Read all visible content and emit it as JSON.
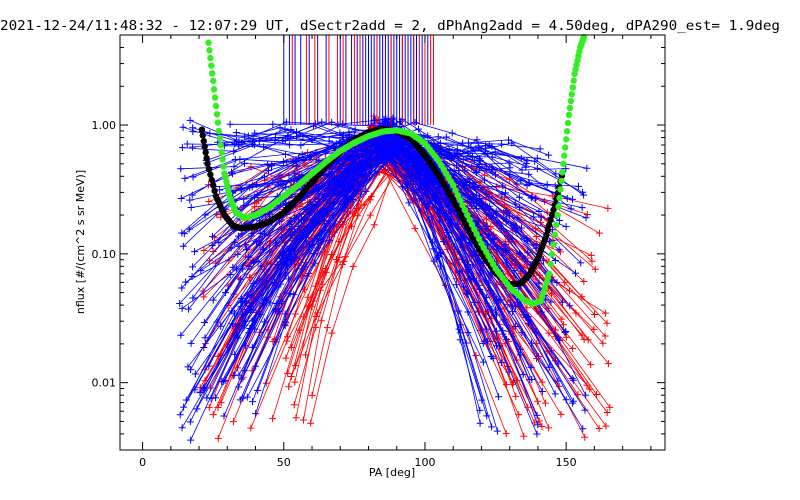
{
  "chart_data": {
    "type": "line",
    "title": "2021-12-24/11:48:32 - 12:07:29 UT, dSectr2add = 2, dPhAng2add = 4.50deg, dPA290_est=   1.9deg",
    "xlabel": "PA [deg]",
    "ylabel": "nflux [#/(cm^2 s sr MeV)]",
    "xlim": [
      -8,
      185
    ],
    "ylim": [
      0.003,
      5.0
    ],
    "yscale": "log",
    "x_ticks": [
      0,
      50,
      100,
      150
    ],
    "x_tick_labels": [
      "0",
      "50",
      "100",
      "150"
    ],
    "y_ticks": [
      0.01,
      0.1,
      1.0
    ],
    "y_tick_labels": [
      "0.01",
      "0.10",
      "1.00"
    ],
    "grid": false,
    "colors": {
      "series_red": "#ff0000",
      "series_blue": "#0000ff",
      "fit_black": "#000000",
      "fit_green": "#33ee22"
    },
    "series": [
      {
        "color": "red",
        "style": "lines+plus-markers",
        "shape": {
          "peak_pa": 85,
          "peak_min": 0.45,
          "peak_max": 1.0,
          "left_start_range": [
            20,
            64
          ],
          "right_end_range": [
            128,
            166
          ],
          "edge_min": 0.004,
          "edge_max": 0.4
        }
      },
      {
        "color": "blue",
        "style": "lines+plus-markers",
        "shape": {
          "peak_pa": 87,
          "peak_min": 0.6,
          "peak_max": 1.0,
          "left_start_range": [
            13,
            42
          ],
          "right_end_range": [
            118,
            158
          ],
          "edge_min": 0.004,
          "edge_max": 1.2
        }
      },
      {
        "name": "",
        "color": "black",
        "style": "thick-dotted",
        "x": [
          21,
          23,
          26,
          29,
          32,
          35,
          40,
          45,
          50,
          55,
          60,
          65,
          70,
          75,
          80,
          85,
          90,
          95,
          100,
          105,
          110,
          115,
          120,
          125,
          130,
          134,
          137,
          140,
          143,
          146,
          149
        ],
        "y": [
          0.92,
          0.5,
          0.28,
          0.2,
          0.165,
          0.158,
          0.162,
          0.178,
          0.21,
          0.27,
          0.36,
          0.48,
          0.62,
          0.77,
          0.88,
          0.93,
          0.9,
          0.78,
          0.58,
          0.4,
          0.26,
          0.16,
          0.1,
          0.071,
          0.058,
          0.059,
          0.069,
          0.092,
          0.14,
          0.24,
          0.45
        ]
      },
      {
        "name": "",
        "color": "green",
        "style": "thick-dotted",
        "x": [
          23,
          25,
          27,
          29,
          31,
          33,
          36,
          40,
          45,
          50,
          55,
          60,
          65,
          70,
          75,
          80,
          85,
          90,
          95,
          100,
          105,
          110,
          115,
          120,
          125,
          130,
          135,
          138,
          141,
          144,
          147,
          149,
          151,
          153,
          155,
          156.5
        ],
        "y": [
          5.0,
          2.2,
          0.9,
          0.42,
          0.27,
          0.21,
          0.19,
          0.2,
          0.23,
          0.28,
          0.34,
          0.42,
          0.52,
          0.63,
          0.73,
          0.82,
          0.89,
          0.91,
          0.86,
          0.72,
          0.52,
          0.34,
          0.2,
          0.12,
          0.077,
          0.055,
          0.044,
          0.041,
          0.043,
          0.07,
          0.2,
          0.5,
          1.2,
          2.5,
          4.0,
          5.0
        ]
      },
      {
        "color": "blue",
        "style": "vertical-lines-at-top",
        "x": [
          50,
          52,
          54,
          56,
          59,
          62,
          65,
          70,
          72,
          74,
          76,
          78,
          79,
          80,
          81,
          82,
          83,
          84,
          85,
          86,
          87,
          88,
          89,
          90,
          91,
          92,
          93,
          94,
          95,
          96,
          97,
          99,
          101
        ]
      },
      {
        "color": "red",
        "style": "vertical-lines-at-top",
        "x": [
          53,
          58,
          61,
          66,
          69,
          71,
          75,
          77,
          83,
          88,
          92,
          96,
          98,
          100,
          102,
          103
        ]
      }
    ]
  }
}
